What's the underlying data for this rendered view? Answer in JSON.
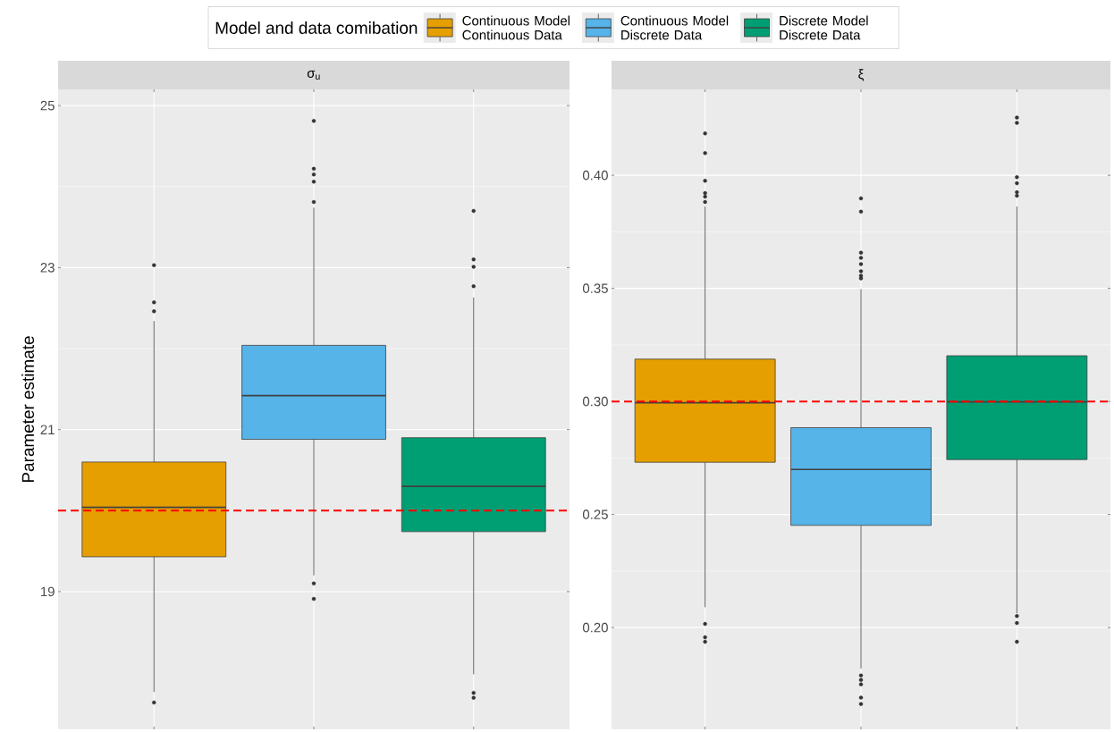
{
  "chart_data": [
    {
      "type": "box",
      "title": "σ$_{u}$",
      "ylabel": "Parameter estimate",
      "legend_title": "Model and data comibation",
      "legend": "top",
      "grid": true,
      "tick_labels": "y",
      "categories": [
        null,
        null,
        null
      ],
      "ylim": [
        17.3,
        25.2
      ],
      "yticks": [
        19,
        21,
        23,
        25
      ],
      "series": [
        {
          "name": "Continuous Model Continuous Data",
          "color": "#e69f00",
          "boxes": [
            {
              "low": 17.76,
              "q1": 19.43,
              "median": 20.04,
              "q3": 20.6,
              "high": 22.34,
              "outliers": [
                23.03,
                22.57,
                22.46,
                17.63
              ]
            },
            null,
            null
          ]
        },
        {
          "name": "Continuous Model Discrete Data",
          "color": "#56b4e9",
          "boxes": [
            null,
            {
              "low": 19.2,
              "q1": 20.88,
              "median": 21.42,
              "q3": 22.04,
              "high": 23.74,
              "outliers": [
                24.81,
                24.22,
                24.15,
                24.06,
                23.81,
                19.1,
                18.91
              ]
            },
            null
          ]
        },
        {
          "name": "Discrete Model Discrete Data",
          "color": "#009e73",
          "boxes": [
            null,
            null,
            {
              "low": 17.98,
              "q1": 19.74,
              "median": 20.3,
              "q3": 20.9,
              "high": 22.63,
              "outliers": [
                23.7,
                23.1,
                23.01,
                22.77,
                17.75,
                17.69
              ]
            }
          ]
        }
      ],
      "ref_lines": [
        {
          "axis": "y",
          "value": 20,
          "color": "#ff0000",
          "line_style": "dashed"
        }
      ]
    },
    {
      "type": "box",
      "title": "ξ",
      "grid": true,
      "tick_labels": "y",
      "categories": [
        null,
        null,
        null
      ],
      "ylim": [
        0.155,
        0.438
      ],
      "yticks": [
        {
          "value": 0.2,
          "label": "0.20"
        },
        {
          "value": 0.25,
          "label": "0.25"
        },
        {
          "value": 0.3,
          "label": "0.30"
        },
        {
          "value": 0.35,
          "label": "0.35"
        },
        {
          "value": 0.4,
          "label": "0.40"
        }
      ],
      "series": [
        {
          "color": "#e69f00",
          "boxes": [
            {
              "low": 0.209,
              "q1": 0.2731,
              "median": 0.2994,
              "q3": 0.3187,
              "high": 0.3862,
              "outliers": [
                0.4185,
                0.4098,
                0.3976,
                0.3921,
                0.3906,
                0.3882,
                0.2016,
                0.1957,
                0.1937
              ]
            },
            null,
            null
          ]
        },
        {
          "color": "#56b4e9",
          "boxes": [
            null,
            {
              "low": 0.1819,
              "q1": 0.2452,
              "median": 0.2699,
              "q3": 0.2884,
              "high": 0.3497,
              "outliers": [
                0.3898,
                0.3839,
                0.3658,
                0.3635,
                0.3607,
                0.3576,
                0.3556,
                0.3544,
                0.1788,
                0.1768,
                0.1749,
                0.169,
                0.1662
              ]
            },
            null
          ]
        },
        {
          "color": "#009e73",
          "boxes": [
            null,
            null,
            {
              "low": 0.2063,
              "q1": 0.2743,
              "median": 0.2998,
              "q3": 0.3202,
              "high": 0.3862,
              "outliers": [
                0.4255,
                0.4232,
                0.3992,
                0.3965,
                0.3925,
                0.391,
                0.2051,
                0.202,
                0.1937
              ]
            }
          ]
        }
      ],
      "ref_lines": [
        {
          "axis": "y",
          "value": 0.3,
          "color": "#ff0000",
          "line_style": "dashed"
        }
      ]
    }
  ]
}
